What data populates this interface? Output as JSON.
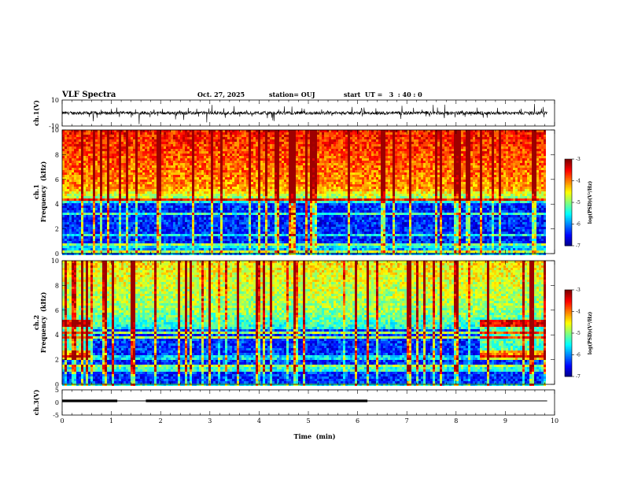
{
  "header": {
    "title": "VLF Spectra",
    "date": "Oct. 27, 2025",
    "station": "station= OUJ",
    "start": "start  UT =   3  : 40 : 0"
  },
  "chart_data": [
    {
      "type": "line",
      "ylabel": "ch.1(V)",
      "xlim": [
        0,
        10
      ],
      "ylim": [
        -10,
        10
      ],
      "ytick_labels": [
        "10",
        "-10"
      ],
      "description_values": {
        "baseline": 0,
        "noise_amplitude": 2.5
      }
    },
    {
      "type": "heatmap",
      "ylabel_line1": "ch.1",
      "ylabel_line2": "Frequency  (kHz)",
      "xlim": [
        0,
        10
      ],
      "ylim": [
        0,
        10
      ],
      "yticks": [
        "0",
        "2",
        "4",
        "6",
        "8",
        "10"
      ],
      "data_end_min": 9.85,
      "colorbar": {
        "ticks": [
          "-3",
          "-4",
          "-5",
          "-6",
          "-7"
        ],
        "label": "log(PSD)(V²/Hz)",
        "range": [
          -7,
          -3
        ]
      }
    },
    {
      "type": "heatmap",
      "ylabel_line1": "ch.2",
      "ylabel_line2": "Frequency  (kHz)",
      "xlim": [
        0,
        10
      ],
      "ylim": [
        0,
        10
      ],
      "yticks": [
        "0",
        "2",
        "4",
        "6",
        "8",
        "10"
      ],
      "data_end_min": 9.85,
      "colorbar": {
        "ticks": [
          "-3",
          "-4",
          "-5",
          "-6",
          "-7"
        ],
        "label": "log(PSD)(V²/Hz)",
        "range": [
          -7,
          -3
        ]
      }
    },
    {
      "type": "line",
      "ylabel": "ch.3(V)",
      "xlim": [
        0,
        10
      ],
      "ylim": [
        -5,
        5
      ],
      "ytick_labels": [
        "5",
        "0",
        "-5"
      ],
      "gps_segments": [
        [
          0.0,
          1.12
        ],
        [
          1.7,
          6.2
        ]
      ],
      "baseline": 0
    }
  ],
  "xaxis": {
    "label": "Time  (min)",
    "ticks": [
      "0",
      "1",
      "2",
      "3",
      "4",
      "5",
      "6",
      "7",
      "8",
      "9",
      "10"
    ]
  }
}
